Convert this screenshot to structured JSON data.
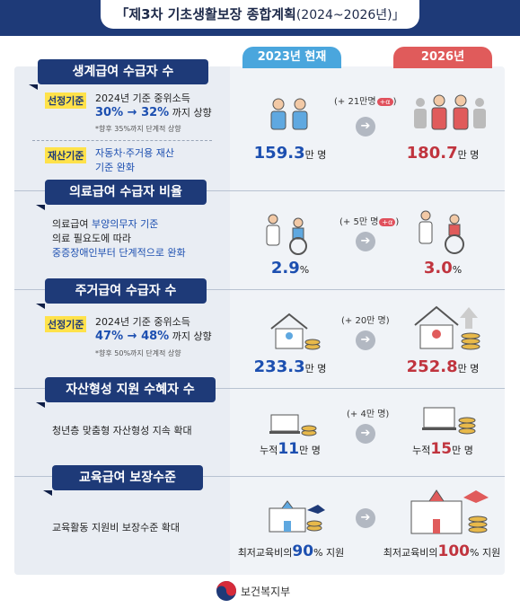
{
  "title": {
    "main": "「제3차 기초생활보장 종합계획",
    "sub": "(2024~2026년)」"
  },
  "columns": {
    "current": "2023년 현재",
    "future": "2026년"
  },
  "sections": [
    {
      "title": "생계급여 수급자 수",
      "badge1": "선정기준",
      "line1": "2024년 기준 중위소득",
      "change_from": "30%",
      "change_to": "32%",
      "change_suffix": "까지 상향",
      "note": "*향후 35%까지 단계적 상향",
      "badge2": "재산기준",
      "line2a": "자동차·주거용 재산",
      "line2b": "기준 완화",
      "increase": "(+ 21만명",
      "increase_close": ")",
      "alpha": "+α",
      "current_value": "159.3",
      "future_value": "180.7",
      "unit": "만 명"
    },
    {
      "title": "의료급여 수급자 비율",
      "line1a": "의료급여 ",
      "line1b": "부양의무자 기준",
      "line2": "의료 필요도에 따라",
      "line3": "중증장애인부터 단계적으로 완화",
      "increase": "(+ 5만 명",
      "increase_close": ")",
      "alpha": "+α",
      "current_value": "2.9",
      "future_value": "3.0",
      "unit": "%"
    },
    {
      "title": "주거급여 수급자 수",
      "badge1": "선정기준",
      "line1": "2024년 기준 중위소득",
      "change_from": "47%",
      "change_to": "48%",
      "change_suffix": "까지 상향",
      "note": "*향후 50%까지 단계적 상향",
      "increase": "(+ 20만 명)",
      "current_value": "233.3",
      "future_value": "252.8",
      "unit": "만 명"
    },
    {
      "title": "자산형성 지원 수혜자 수",
      "line1": "청년층 맞춤형 자산형성 지속 확대",
      "increase": "(+ 4만 명)",
      "prefix": "누적",
      "current_value": "11",
      "future_value": "15",
      "unit": "만 명"
    },
    {
      "title": "교육급여 보장수준",
      "line1": "교육활동 지원비  보장수준 확대",
      "prefix": "최저교육비의",
      "current_value": "90",
      "future_value": "100",
      "unit": "% 지원"
    }
  ],
  "footer": {
    "ministry": "보건복지부"
  },
  "colors": {
    "navy": "#1e3a78",
    "blue": "#4aa6dd",
    "red": "#e05b5b",
    "highlight": "#ffe24a"
  }
}
